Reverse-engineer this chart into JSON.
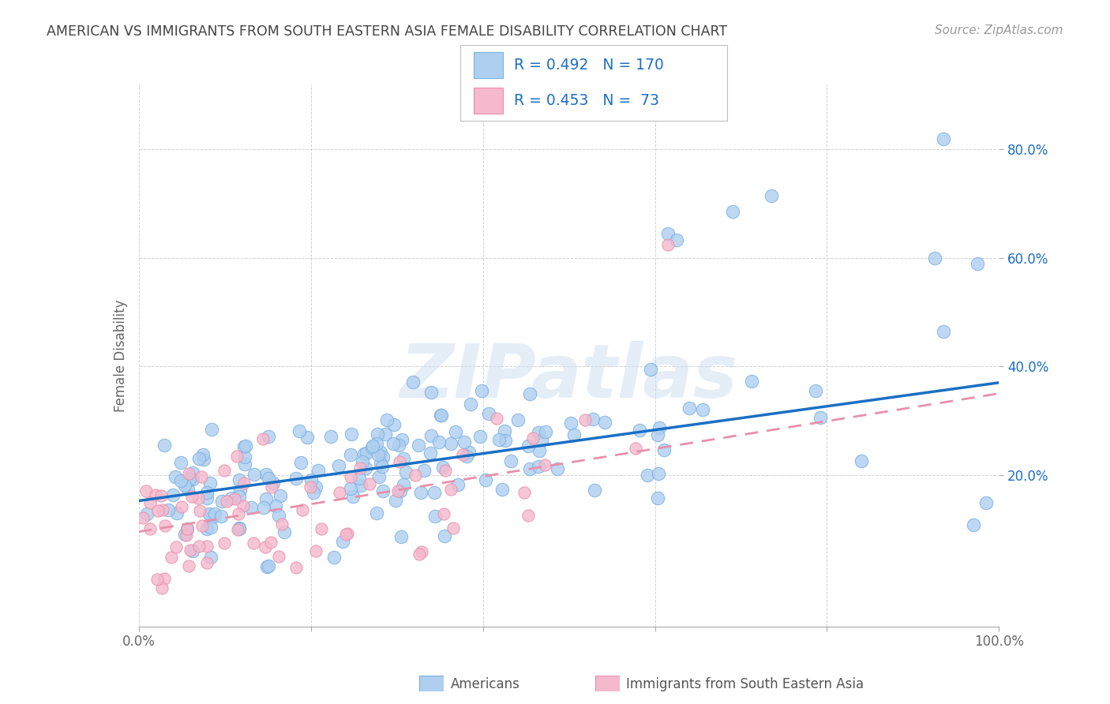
{
  "title": "AMERICAN VS IMMIGRANTS FROM SOUTH EASTERN ASIA FEMALE DISABILITY CORRELATION CHART",
  "source": "Source: ZipAtlas.com",
  "ylabel": "Female Disability",
  "watermark": "ZIPatlas",
  "blue_R": 0.492,
  "blue_N": 170,
  "pink_R": 0.453,
  "pink_N": 73,
  "blue_color": "#aecff0",
  "blue_edge": "#7ab0e0",
  "pink_color": "#f5b8cc",
  "pink_edge": "#e890aa",
  "blue_line_color": "#1a6fc4",
  "pink_line_color": "#e890aa",
  "legend_text_color": "#1a6fc4",
  "title_color": "#444444",
  "grid_color": "#cccccc",
  "background": "#ffffff",
  "xlim": [
    0.0,
    1.0
  ],
  "ylim": [
    -0.08,
    0.92
  ],
  "ytick_positions": [
    0.2,
    0.4,
    0.6,
    0.8
  ],
  "ytick_labels": [
    "20.0%",
    "40.0%",
    "60.0%",
    "80.0%"
  ],
  "xtick_positions": [
    0.0,
    0.2,
    0.4,
    0.6,
    0.8,
    1.0
  ],
  "xtick_labels": [
    "0.0%",
    "",
    "",
    "",
    "",
    "100.0%"
  ]
}
